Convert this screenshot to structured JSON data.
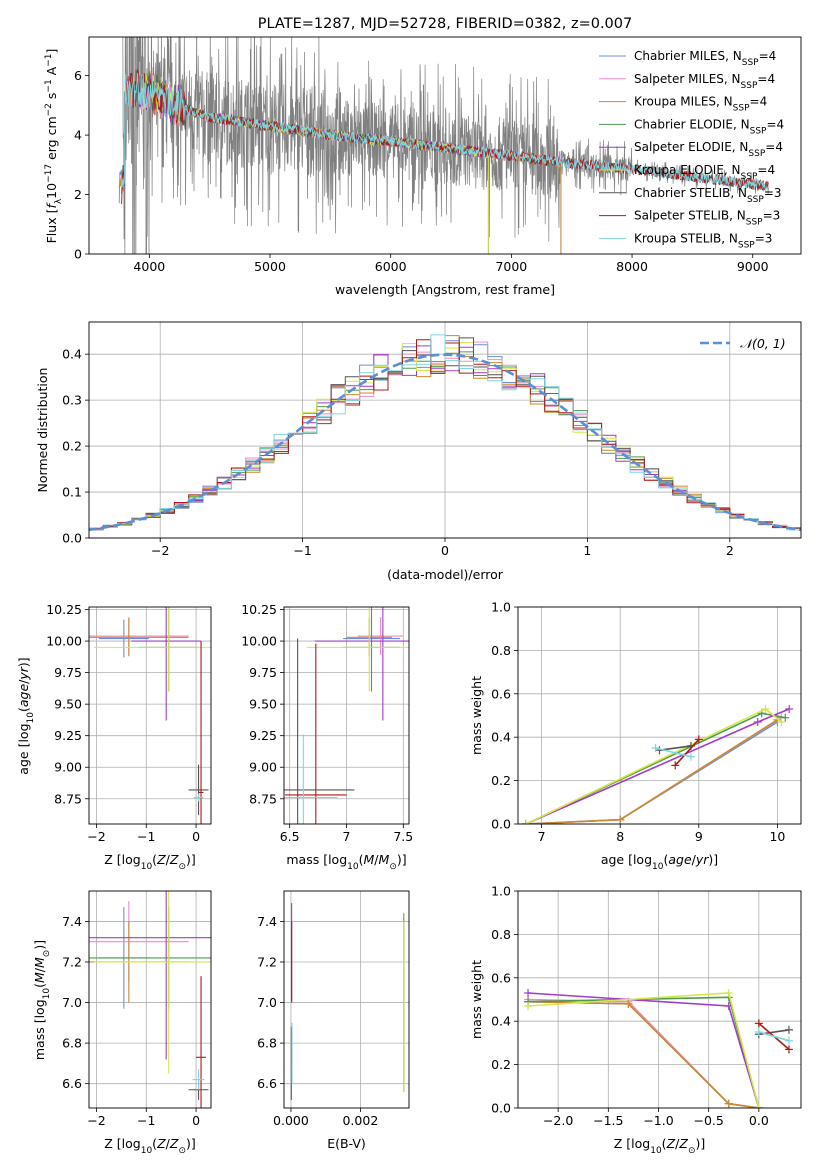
{
  "figure_title": "PLATE=1287, MJD=52728, FIBERID=0382, z=0.007",
  "colors": {
    "Chabrier MILES": "#6a8fd6",
    "Salpeter MILES": "#f08cc8",
    "Kroupa MILES": "#c98a2a",
    "Chabrier ELODIE": "#4f9a4f",
    "Salpeter ELODIE": "#a23cc8",
    "Kroupa ELODIE": "#d4e84a",
    "Chabrier STELIB": "#555555",
    "Salpeter STELIB": "#b01818",
    "Kroupa STELIB": "#7fd6e0",
    "data": "#808080",
    "gauss": "#5b8fd9"
  },
  "chart_data": [
    {
      "id": "spectrum",
      "type": "line",
      "title": "PLATE=1287, MJD=52728, FIBERID=0382, z=0.007",
      "xlabel": "wavelength [Angstrom, rest frame]",
      "ylabel_parts": [
        "Flux [",
        "f",
        "λ",
        "10",
        "−17",
        " erg cm",
        "−2",
        " s",
        "−1",
        " A",
        "−1",
        "]"
      ],
      "xlim": [
        3500,
        9400
      ],
      "ylim": [
        0,
        7.3
      ],
      "xticks": [
        4000,
        5000,
        6000,
        7000,
        8000,
        9000
      ],
      "yticks": [
        0,
        2,
        4,
        6
      ],
      "legend": [
        {
          "name": "Chabrier MILES",
          "n": "4"
        },
        {
          "name": "Salpeter MILES",
          "n": "4"
        },
        {
          "name": "Kroupa MILES",
          "n": "4"
        },
        {
          "name": "Chabrier ELODIE",
          "n": "4"
        },
        {
          "name": "Salpeter ELODIE",
          "n": "4"
        },
        {
          "name": "Kroupa ELODIE",
          "n": "4"
        },
        {
          "name": "Chabrier STELIB",
          "n": "3"
        },
        {
          "name": "Salpeter STELIB",
          "n": "3"
        },
        {
          "name": "Kroupa STELIB",
          "n": "3"
        }
      ],
      "legend_sub": "SSP",
      "model_continuum": [
        [
          3800,
          5.6
        ],
        [
          4000,
          5.5
        ],
        [
          4200,
          5.0
        ],
        [
          4500,
          4.6
        ],
        [
          5000,
          4.3
        ],
        [
          5500,
          4.0
        ],
        [
          6000,
          3.8
        ],
        [
          6500,
          3.55
        ],
        [
          7000,
          3.3
        ],
        [
          7500,
          3.05
        ],
        [
          8000,
          2.85
        ],
        [
          8500,
          2.6
        ],
        [
          9000,
          2.35
        ],
        [
          9130,
          2.3
        ]
      ],
      "model_ranges": {
        "MILES": [
          3750,
          7410
        ],
        "ELODIE": [
          3900,
          6810
        ],
        "STELIB": [
          3770,
          9130
        ]
      }
    },
    {
      "id": "residuals",
      "type": "histogram",
      "xlabel": "(data-model)/error",
      "ylabel": "Normed distribution",
      "xlim": [
        -2.5,
        2.5
      ],
      "ylim": [
        0,
        0.47
      ],
      "xticks": [
        -2,
        -1,
        0,
        1,
        2
      ],
      "yticks": [
        0.0,
        0.1,
        0.2,
        0.3,
        0.4
      ],
      "bin_width": 0.1,
      "legend": "𝒩(0, 1)"
    },
    {
      "id": "age_vs_Z",
      "type": "scatter",
      "xlabel": "Z [log10(Z/Z⊙)]",
      "ylabel": "age  [log10(age/yr)]",
      "xlim": [
        -2.15,
        0.3
      ],
      "ylim": [
        8.55,
        10.27
      ],
      "xticks": [
        -2,
        -1,
        0
      ],
      "yticks": [
        8.75,
        9.0,
        9.25,
        9.5,
        9.75,
        10.0,
        10.25
      ],
      "points": [
        {
          "model": "Chabrier MILES",
          "x": -1.45,
          "y": 10.02,
          "xerr": 0.5,
          "yerr": 0.15
        },
        {
          "model": "Salpeter MILES",
          "x": -1.35,
          "y": 10.04,
          "xerr": 1.2,
          "yerr": 0.15
        },
        {
          "model": "Kroupa MILES",
          "x": -1.35,
          "y": 10.03,
          "xerr": 1.2,
          "yerr": 0.15
        },
        {
          "model": "Chabrier ELODIE",
          "x": -0.55,
          "y": 9.95,
          "xerr": 0.6,
          "yerr": 0.35
        },
        {
          "model": "Salpeter ELODIE",
          "x": -0.6,
          "y": 10.0,
          "xerr": 0.7,
          "yerr": 0.63
        },
        {
          "model": "Kroupa ELODIE",
          "x": -0.55,
          "y": 9.95,
          "xerr": 1.5,
          "yerr": 0.35
        },
        {
          "model": "Chabrier STELIB",
          "x": 0.05,
          "y": 8.82,
          "xerr": 0.2,
          "yerr": 0.2
        },
        {
          "model": "Salpeter STELIB",
          "x": 0.1,
          "y": 8.8,
          "xerr": 0.05,
          "yerr": 1.2
        },
        {
          "model": "Kroupa STELIB",
          "x": 0.05,
          "y": 8.76,
          "xerr": 0.1,
          "yerr": 0.03
        }
      ]
    },
    {
      "id": "age_vs_mass",
      "type": "scatter",
      "xlabel": "mass [log10(M/M⊙)]",
      "ylabel": "",
      "xlim": [
        6.45,
        7.55
      ],
      "ylim": [
        8.55,
        10.27
      ],
      "xticks": [
        6.5,
        7.0,
        7.5
      ],
      "yticks": [
        8.75,
        9.0,
        9.25,
        9.5,
        9.75,
        10.0,
        10.25
      ],
      "points": [
        {
          "model": "Chabrier MILES",
          "x": 7.22,
          "y": 10.02,
          "xerr": 0.25,
          "yerr": 0.15
        },
        {
          "model": "Salpeter MILES",
          "x": 7.3,
          "y": 10.04,
          "xerr": 0.2,
          "yerr": 0.15
        },
        {
          "model": "Kroupa MILES",
          "x": 7.2,
          "y": 10.03,
          "xerr": 0.2,
          "yerr": 0.15
        },
        {
          "model": "Chabrier ELODIE",
          "x": 7.22,
          "y": 9.95,
          "xerr": 0.25,
          "yerr": 0.35
        },
        {
          "model": "Salpeter ELODIE",
          "x": 7.32,
          "y": 10.0,
          "xerr": 0.6,
          "yerr": 0.63
        },
        {
          "model": "Kroupa ELODIE",
          "x": 7.2,
          "y": 9.95,
          "xerr": 0.55,
          "yerr": 0.35
        },
        {
          "model": "Chabrier STELIB",
          "x": 6.57,
          "y": 8.82,
          "xerr": 0.5,
          "yerr": 1.2
        },
        {
          "model": "Salpeter STELIB",
          "x": 6.73,
          "y": 8.78,
          "xerr": 0.27,
          "yerr": 1.2
        },
        {
          "model": "Kroupa STELIB",
          "x": 6.62,
          "y": 8.76,
          "xerr": 0.3,
          "yerr": 0.5
        }
      ]
    },
    {
      "id": "mass_weight_vs_age",
      "type": "line",
      "xlabel": "age  [log10(age/yr)]",
      "ylabel": "mass weight",
      "xlim": [
        6.7,
        10.3
      ],
      "ylim": [
        0,
        1.0
      ],
      "xticks": [
        7,
        8,
        9,
        10
      ],
      "yticks": [
        0.0,
        0.2,
        0.4,
        0.6,
        0.8,
        1.0
      ],
      "series": [
        {
          "model": "Chabrier MILES",
          "x": [
            6.8,
            8.0,
            10.0
          ],
          "y": [
            0.0,
            0.02,
            0.47
          ]
        },
        {
          "model": "Salpeter MILES",
          "x": [
            6.8,
            8.0,
            10.05
          ],
          "y": [
            0.0,
            0.02,
            0.49
          ]
        },
        {
          "model": "Kroupa MILES",
          "x": [
            6.8,
            8.0,
            10.0
          ],
          "y": [
            0.0,
            0.02,
            0.48
          ]
        },
        {
          "model": "Chabrier ELODIE",
          "x": [
            6.8,
            9.8,
            10.1
          ],
          "y": [
            0.0,
            0.51,
            0.49
          ]
        },
        {
          "model": "Salpeter ELODIE",
          "x": [
            6.8,
            9.75,
            10.15
          ],
          "y": [
            0.0,
            0.47,
            0.53
          ]
        },
        {
          "model": "Kroupa ELODIE",
          "x": [
            6.8,
            9.85,
            10.05
          ],
          "y": [
            0.0,
            0.53,
            0.47
          ]
        },
        {
          "model": "Chabrier STELIB",
          "x": [
            8.5,
            8.9
          ],
          "y": [
            0.34,
            0.36
          ]
        },
        {
          "model": "Salpeter STELIB",
          "x": [
            8.7,
            9.0
          ],
          "y": [
            0.27,
            0.39
          ]
        },
        {
          "model": "Kroupa STELIB",
          "x": [
            8.45,
            8.9
          ],
          "y": [
            0.35,
            0.31
          ]
        }
      ]
    },
    {
      "id": "mass_vs_Z",
      "type": "scatter",
      "xlabel": "Z [log10(Z/Z⊙)]",
      "ylabel": "mass [log10(M/M⊙)]",
      "xlim": [
        -2.15,
        0.3
      ],
      "ylim": [
        6.48,
        7.55
      ],
      "xticks": [
        -2,
        -1,
        0
      ],
      "yticks": [
        6.6,
        6.8,
        7.0,
        7.2,
        7.4
      ],
      "points": [
        {
          "model": "Chabrier MILES",
          "x": -1.45,
          "y": 7.22,
          "xerr": 0.5,
          "yerr": 0.25
        },
        {
          "model": "Salpeter MILES",
          "x": -1.35,
          "y": 7.3,
          "xerr": 1.2,
          "yerr": 0.2
        },
        {
          "model": "Kroupa MILES",
          "x": -1.35,
          "y": 7.2,
          "xerr": 1.2,
          "yerr": 0.2
        },
        {
          "model": "Chabrier ELODIE",
          "x": -0.55,
          "y": 7.22,
          "xerr": 1.6,
          "yerr": 0.25
        },
        {
          "model": "Salpeter ELODIE",
          "x": -0.6,
          "y": 7.32,
          "xerr": 2.7,
          "yerr": 0.6
        },
        {
          "model": "Kroupa ELODIE",
          "x": -0.55,
          "y": 7.2,
          "xerr": 1.5,
          "yerr": 0.55
        },
        {
          "model": "Chabrier STELIB",
          "x": 0.05,
          "y": 6.57,
          "xerr": 0.2,
          "yerr": 0.05
        },
        {
          "model": "Salpeter STELIB",
          "x": 0.1,
          "y": 6.73,
          "xerr": 0.1,
          "yerr": 0.4
        },
        {
          "model": "Kroupa STELIB",
          "x": 0.05,
          "y": 6.62,
          "xerr": 0.12,
          "yerr": 0.05
        }
      ]
    },
    {
      "id": "mass_vs_ebv",
      "type": "scatter",
      "xlabel": "E(B-V)",
      "ylabel": "",
      "xlim": [
        -0.0002,
        0.0034
      ],
      "ylim": [
        6.48,
        7.55
      ],
      "xticks": [
        0.0,
        0.002
      ],
      "xticklabels": [
        "0.000",
        "0.002"
      ],
      "yticks": [
        6.6,
        6.8,
        7.0,
        7.2,
        7.4
      ],
      "points": [
        {
          "model": "Chabrier ELODIE",
          "x": 0.00325,
          "y": 7.0,
          "xerr": 0,
          "yerr": 0.44
        },
        {
          "model": "Kroupa ELODIE",
          "x": 0.00325,
          "y": 6.98,
          "xerr": 0,
          "yerr": 0.42
        },
        {
          "model": "Salpeter ELODIE",
          "x": 2e-05,
          "y": 7.25,
          "xerr": 0,
          "yerr": 0.24
        },
        {
          "model": "Salpeter STELIB",
          "x": 2e-05,
          "y": 7.2,
          "xerr": 0,
          "yerr": 0.2
        },
        {
          "model": "Chabrier STELIB",
          "x": 1e-05,
          "y": 6.7,
          "xerr": 0,
          "yerr": 0.18
        },
        {
          "model": "Kroupa STELIB",
          "x": 3e-05,
          "y": 6.75,
          "xerr": 0,
          "yerr": 0.15
        }
      ]
    },
    {
      "id": "mass_weight_vs_Z",
      "type": "line",
      "xlabel": "Z [log10(Z/Z⊙)]",
      "ylabel": "mass weight",
      "xlim": [
        -2.4,
        0.42
      ],
      "ylim": [
        0,
        1.0
      ],
      "xticks": [
        -2.0,
        -1.5,
        -1.0,
        -0.5,
        0.0
      ],
      "yticks": [
        0.0,
        0.2,
        0.4,
        0.6,
        0.8,
        1.0
      ],
      "series": [
        {
          "model": "Chabrier MILES",
          "x": [
            -2.3,
            -1.3,
            -0.3,
            0.0
          ],
          "y": [
            0.49,
            0.48,
            0.02,
            0.0
          ]
        },
        {
          "model": "Salpeter MILES",
          "x": [
            -2.3,
            -1.3,
            -0.3,
            0.0
          ],
          "y": [
            0.5,
            0.49,
            0.02,
            0.0
          ]
        },
        {
          "model": "Kroupa MILES",
          "x": [
            -2.3,
            -1.3,
            -0.3,
            0.0
          ],
          "y": [
            0.49,
            0.48,
            0.02,
            0.0
          ]
        },
        {
          "model": "Chabrier ELODIE",
          "x": [
            -2.3,
            -0.3,
            0.0
          ],
          "y": [
            0.49,
            0.51,
            0.0
          ]
        },
        {
          "model": "Salpeter ELODIE",
          "x": [
            -2.3,
            -0.3,
            0.0
          ],
          "y": [
            0.53,
            0.47,
            0.0
          ]
        },
        {
          "model": "Kroupa ELODIE",
          "x": [
            -2.3,
            -0.3,
            0.0
          ],
          "y": [
            0.47,
            0.53,
            0.0
          ]
        },
        {
          "model": "Chabrier STELIB",
          "x": [
            0.0,
            0.3
          ],
          "y": [
            0.34,
            0.36
          ]
        },
        {
          "model": "Salpeter STELIB",
          "x": [
            0.0,
            0.3
          ],
          "y": [
            0.39,
            0.27
          ]
        },
        {
          "model": "Kroupa STELIB",
          "x": [
            0.0,
            0.3
          ],
          "y": [
            0.35,
            0.31
          ]
        }
      ]
    }
  ]
}
